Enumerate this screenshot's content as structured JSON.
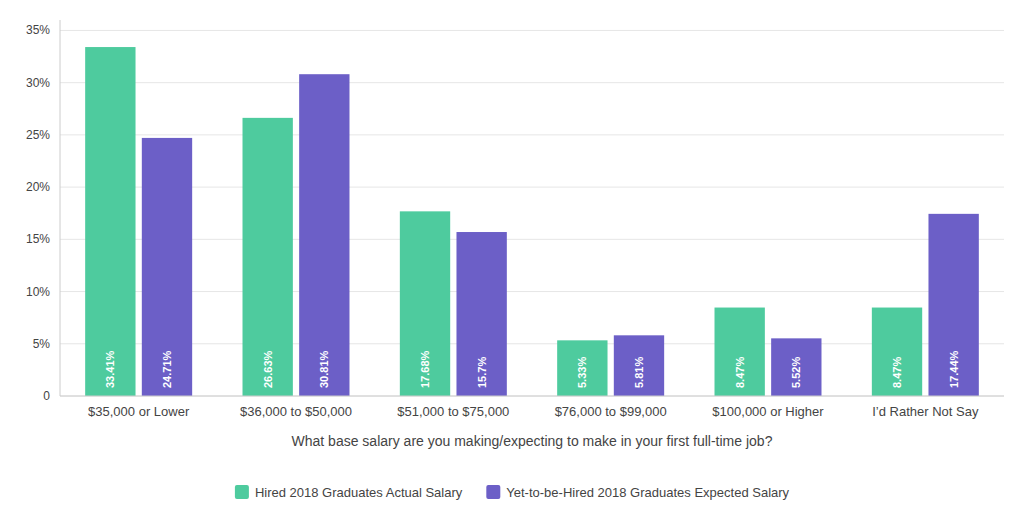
{
  "chart_data": {
    "type": "bar",
    "categories": [
      "$35,000 or Lower",
      "$36,000 to $50,000",
      "$51,000 to $75,000",
      "$76,000 to $99,000",
      "$100,000 or Higher",
      "I’d Rather Not Say"
    ],
    "series": [
      {
        "name": "Hired 2018 Graduates Actual Salary",
        "color": "#4ecb9e",
        "values": [
          33.41,
          26.63,
          17.68,
          5.33,
          8.47,
          8.47
        ],
        "value_labels": [
          "33.41%",
          "26.63%",
          "17.68%",
          "5.33%",
          "8.47%",
          "8.47%"
        ]
      },
      {
        "name": "Yet-to-be-Hired 2018 Graduates Expected Salary",
        "color": "#6c5fc7",
        "values": [
          24.71,
          30.81,
          15.7,
          5.81,
          5.52,
          17.44
        ],
        "value_labels": [
          "24.71%",
          "30.81%",
          "15.7%",
          "5.81%",
          "5.52%",
          "17.44%"
        ]
      }
    ],
    "x_label": "What base salary are you making/expecting to make in your first full-time job?",
    "ylim": [
      0,
      36
    ],
    "yticks": [
      0,
      {
        "value": 5,
        "label": "5%"
      },
      {
        "value": 10,
        "label": "10%"
      },
      {
        "value": 15,
        "label": "15%"
      },
      {
        "value": 20,
        "label": "20%"
      },
      {
        "value": 25,
        "label": "25%"
      },
      {
        "value": 30,
        "label": "30%"
      },
      {
        "value": 35,
        "label": "35%"
      }
    ],
    "grid": true,
    "data_labels": true,
    "legend": "bottom"
  }
}
